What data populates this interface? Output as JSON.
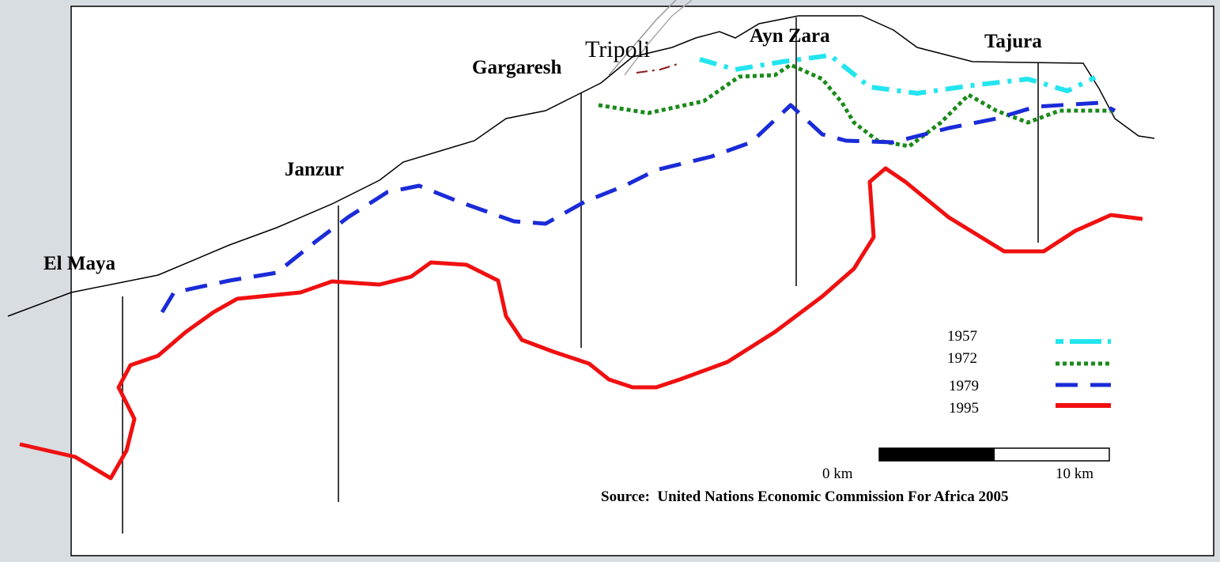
{
  "places": [
    "El Maya",
    "Janzur",
    "Gargaresh",
    "Tripoli",
    "Ayn Zara",
    "Tajura"
  ],
  "legend": [
    "1957",
    "1972",
    "1979",
    "1995"
  ],
  "scale": {
    "start": "0 km",
    "end": "10 km"
  },
  "source": "Source:  United Nations Economic Commission For Africa 2005"
}
